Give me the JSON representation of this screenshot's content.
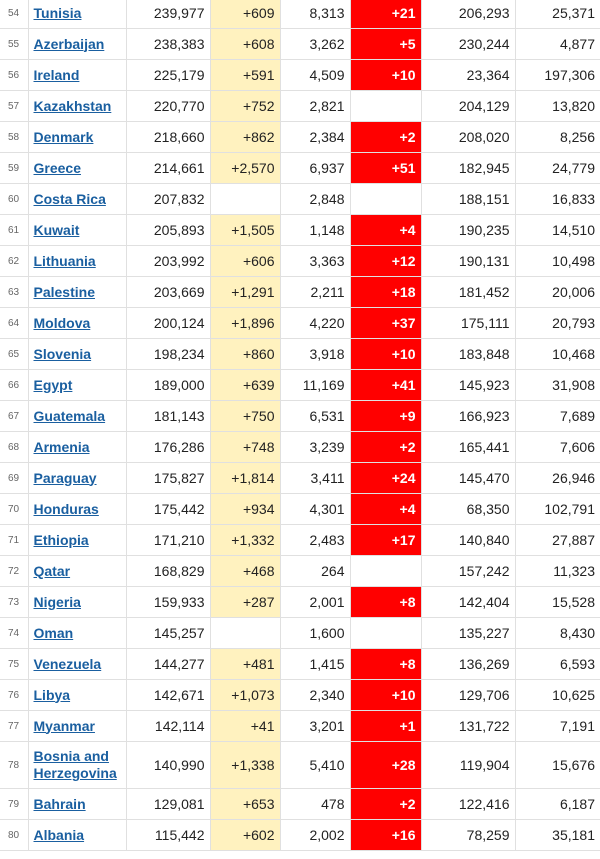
{
  "table": {
    "rows": [
      {
        "num": "54",
        "country": "Tunisia",
        "total": "239,977",
        "new_cases": "+609",
        "deaths": "8,313",
        "new_deaths": "+21",
        "recovered": "206,293",
        "active": "25,371"
      },
      {
        "num": "55",
        "country": "Azerbaijan",
        "total": "238,383",
        "new_cases": "+608",
        "deaths": "3,262",
        "new_deaths": "+5",
        "recovered": "230,244",
        "active": "4,877"
      },
      {
        "num": "56",
        "country": "Ireland",
        "total": "225,179",
        "new_cases": "+591",
        "deaths": "4,509",
        "new_deaths": "+10",
        "recovered": "23,364",
        "active": "197,306"
      },
      {
        "num": "57",
        "country": "Kazakhstan",
        "total": "220,770",
        "new_cases": "+752",
        "deaths": "2,821",
        "new_deaths": "",
        "recovered": "204,129",
        "active": "13,820"
      },
      {
        "num": "58",
        "country": "Denmark",
        "total": "218,660",
        "new_cases": "+862",
        "deaths": "2,384",
        "new_deaths": "+2",
        "recovered": "208,020",
        "active": "8,256"
      },
      {
        "num": "59",
        "country": "Greece",
        "total": "214,661",
        "new_cases": "+2,570",
        "deaths": "6,937",
        "new_deaths": "+51",
        "recovered": "182,945",
        "active": "24,779"
      },
      {
        "num": "60",
        "country": "Costa Rica",
        "total": "207,832",
        "new_cases": "",
        "deaths": "2,848",
        "new_deaths": "",
        "recovered": "188,151",
        "active": "16,833"
      },
      {
        "num": "61",
        "country": "Kuwait",
        "total": "205,893",
        "new_cases": "+1,505",
        "deaths": "1,148",
        "new_deaths": "+4",
        "recovered": "190,235",
        "active": "14,510"
      },
      {
        "num": "62",
        "country": "Lithuania",
        "total": "203,992",
        "new_cases": "+606",
        "deaths": "3,363",
        "new_deaths": "+12",
        "recovered": "190,131",
        "active": "10,498"
      },
      {
        "num": "63",
        "country": "Palestine",
        "total": "203,669",
        "new_cases": "+1,291",
        "deaths": "2,211",
        "new_deaths": "+18",
        "recovered": "181,452",
        "active": "20,006"
      },
      {
        "num": "64",
        "country": "Moldova",
        "total": "200,124",
        "new_cases": "+1,896",
        "deaths": "4,220",
        "new_deaths": "+37",
        "recovered": "175,111",
        "active": "20,793"
      },
      {
        "num": "65",
        "country": "Slovenia",
        "total": "198,234",
        "new_cases": "+860",
        "deaths": "3,918",
        "new_deaths": "+10",
        "recovered": "183,848",
        "active": "10,468"
      },
      {
        "num": "66",
        "country": "Egypt",
        "total": "189,000",
        "new_cases": "+639",
        "deaths": "11,169",
        "new_deaths": "+41",
        "recovered": "145,923",
        "active": "31,908"
      },
      {
        "num": "67",
        "country": "Guatemala",
        "total": "181,143",
        "new_cases": "+750",
        "deaths": "6,531",
        "new_deaths": "+9",
        "recovered": "166,923",
        "active": "7,689"
      },
      {
        "num": "68",
        "country": "Armenia",
        "total": "176,286",
        "new_cases": "+748",
        "deaths": "3,239",
        "new_deaths": "+2",
        "recovered": "165,441",
        "active": "7,606"
      },
      {
        "num": "69",
        "country": "Paraguay",
        "total": "175,827",
        "new_cases": "+1,814",
        "deaths": "3,411",
        "new_deaths": "+24",
        "recovered": "145,470",
        "active": "26,946"
      },
      {
        "num": "70",
        "country": "Honduras",
        "total": "175,442",
        "new_cases": "+934",
        "deaths": "4,301",
        "new_deaths": "+4",
        "recovered": "68,350",
        "active": "102,791"
      },
      {
        "num": "71",
        "country": "Ethiopia",
        "total": "171,210",
        "new_cases": "+1,332",
        "deaths": "2,483",
        "new_deaths": "+17",
        "recovered": "140,840",
        "active": "27,887"
      },
      {
        "num": "72",
        "country": "Qatar",
        "total": "168,829",
        "new_cases": "+468",
        "deaths": "264",
        "new_deaths": "",
        "recovered": "157,242",
        "active": "11,323"
      },
      {
        "num": "73",
        "country": "Nigeria",
        "total": "159,933",
        "new_cases": "+287",
        "deaths": "2,001",
        "new_deaths": "+8",
        "recovered": "142,404",
        "active": "15,528"
      },
      {
        "num": "74",
        "country": "Oman",
        "total": "145,257",
        "new_cases": "",
        "deaths": "1,600",
        "new_deaths": "",
        "recovered": "135,227",
        "active": "8,430"
      },
      {
        "num": "75",
        "country": "Venezuela",
        "total": "144,277",
        "new_cases": "+481",
        "deaths": "1,415",
        "new_deaths": "+8",
        "recovered": "136,269",
        "active": "6,593"
      },
      {
        "num": "76",
        "country": "Libya",
        "total": "142,671",
        "new_cases": "+1,073",
        "deaths": "2,340",
        "new_deaths": "+10",
        "recovered": "129,706",
        "active": "10,625"
      },
      {
        "num": "77",
        "country": "Myanmar",
        "total": "142,114",
        "new_cases": "+41",
        "deaths": "3,201",
        "new_deaths": "+1",
        "recovered": "131,722",
        "active": "7,191"
      },
      {
        "num": "78",
        "country": "Bosnia and Herzegovina",
        "total": "140,990",
        "new_cases": "+1,338",
        "deaths": "5,410",
        "new_deaths": "+28",
        "recovered": "119,904",
        "active": "15,676"
      },
      {
        "num": "79",
        "country": "Bahrain",
        "total": "129,081",
        "new_cases": "+653",
        "deaths": "478",
        "new_deaths": "+2",
        "recovered": "122,416",
        "active": "6,187"
      },
      {
        "num": "80",
        "country": "Albania",
        "total": "115,442",
        "new_cases": "+602",
        "deaths": "2,002",
        "new_deaths": "+16",
        "recovered": "78,259",
        "active": "35,181"
      }
    ]
  },
  "colors": {
    "new_cases_bg": "#fff2bf",
    "new_deaths_bg": "#ff0000",
    "link": "#1a5fa0"
  }
}
